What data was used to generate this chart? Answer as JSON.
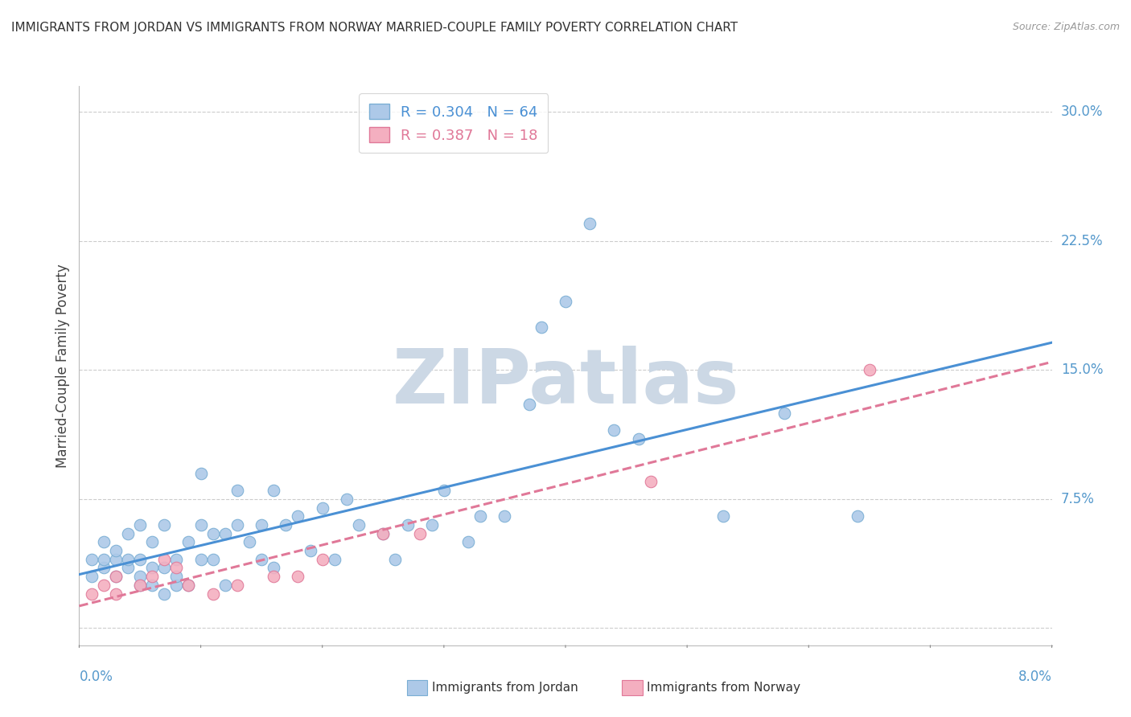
{
  "title": "IMMIGRANTS FROM JORDAN VS IMMIGRANTS FROM NORWAY MARRIED-COUPLE FAMILY POVERTY CORRELATION CHART",
  "source": "Source: ZipAtlas.com",
  "ylabel": "Married-Couple Family Poverty",
  "xmin": 0.0,
  "xmax": 0.08,
  "ymin": -0.01,
  "ymax": 0.315,
  "jordan_color": "#adc9e8",
  "jordan_edge": "#7aaed4",
  "norway_color": "#f4afc0",
  "norway_edge": "#e07898",
  "jordan_R": 0.304,
  "jordan_N": 64,
  "norway_R": 0.387,
  "norway_N": 18,
  "jordan_line_color": "#4a90d4",
  "norway_line_color": "#e07898",
  "watermark": "ZIPatlas",
  "watermark_color": "#ccd8e5",
  "legend_jordan": "Immigrants from Jordan",
  "legend_norway": "Immigrants from Norway",
  "right_ytick_vals": [
    0.0,
    0.075,
    0.15,
    0.225,
    0.3
  ],
  "right_ytick_labels": [
    "",
    "7.5%",
    "15.0%",
    "22.5%",
    "30.0%"
  ],
  "jordan_x": [
    0.001,
    0.001,
    0.002,
    0.002,
    0.002,
    0.003,
    0.003,
    0.003,
    0.004,
    0.004,
    0.004,
    0.005,
    0.005,
    0.005,
    0.005,
    0.006,
    0.006,
    0.006,
    0.007,
    0.007,
    0.007,
    0.008,
    0.008,
    0.008,
    0.009,
    0.009,
    0.01,
    0.01,
    0.01,
    0.011,
    0.011,
    0.012,
    0.012,
    0.013,
    0.013,
    0.014,
    0.015,
    0.015,
    0.016,
    0.016,
    0.017,
    0.018,
    0.019,
    0.02,
    0.021,
    0.022,
    0.023,
    0.025,
    0.026,
    0.027,
    0.029,
    0.03,
    0.032,
    0.033,
    0.035,
    0.037,
    0.038,
    0.04,
    0.042,
    0.044,
    0.046,
    0.053,
    0.058,
    0.064
  ],
  "jordan_y": [
    0.04,
    0.03,
    0.035,
    0.04,
    0.05,
    0.03,
    0.04,
    0.045,
    0.035,
    0.04,
    0.055,
    0.025,
    0.03,
    0.04,
    0.06,
    0.025,
    0.035,
    0.05,
    0.02,
    0.035,
    0.06,
    0.025,
    0.03,
    0.04,
    0.025,
    0.05,
    0.04,
    0.06,
    0.09,
    0.04,
    0.055,
    0.025,
    0.055,
    0.06,
    0.08,
    0.05,
    0.04,
    0.06,
    0.035,
    0.08,
    0.06,
    0.065,
    0.045,
    0.07,
    0.04,
    0.075,
    0.06,
    0.055,
    0.04,
    0.06,
    0.06,
    0.08,
    0.05,
    0.065,
    0.065,
    0.13,
    0.175,
    0.19,
    0.235,
    0.115,
    0.11,
    0.065,
    0.125,
    0.065
  ],
  "norway_x": [
    0.001,
    0.002,
    0.003,
    0.003,
    0.005,
    0.006,
    0.007,
    0.008,
    0.009,
    0.011,
    0.013,
    0.016,
    0.018,
    0.02,
    0.025,
    0.028,
    0.047,
    0.065
  ],
  "norway_y": [
    0.02,
    0.025,
    0.02,
    0.03,
    0.025,
    0.03,
    0.04,
    0.035,
    0.025,
    0.02,
    0.025,
    0.03,
    0.03,
    0.04,
    0.055,
    0.055,
    0.085,
    0.15
  ]
}
